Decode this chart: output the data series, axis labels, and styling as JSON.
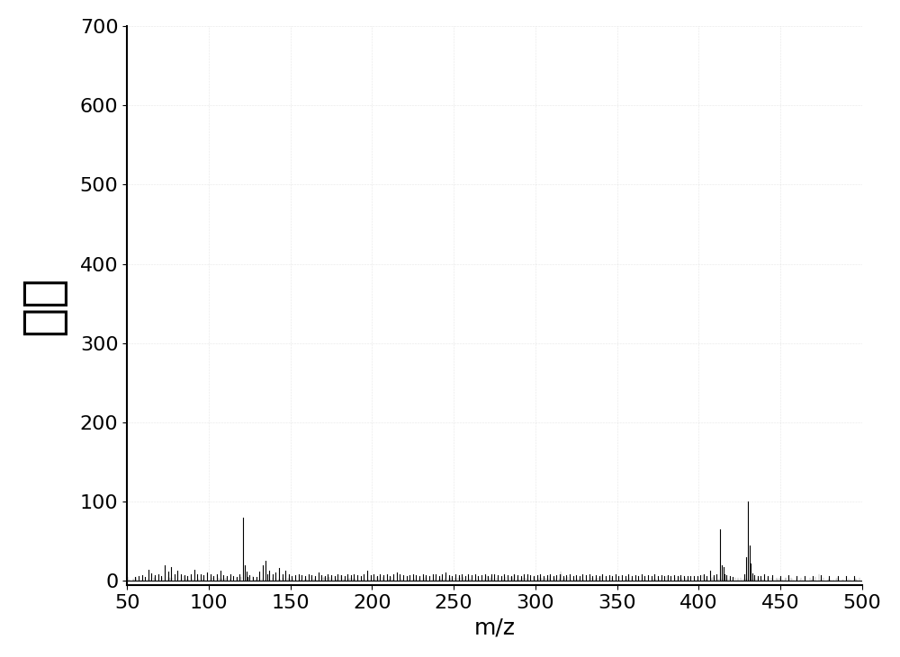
{
  "xlim": [
    50,
    500
  ],
  "ylim": [
    -5,
    700
  ],
  "ylim_display": [
    0,
    700
  ],
  "xticks": [
    50,
    100,
    150,
    200,
    250,
    300,
    350,
    400,
    450,
    500
  ],
  "yticks": [
    0,
    100,
    200,
    300,
    400,
    500,
    600,
    700
  ],
  "xlabel": "m/z",
  "ylabel": "强度",
  "xlabel_fontsize": 18,
  "ylabel_fontsize": 40,
  "tick_fontsize": 16,
  "line_color": "#000000",
  "background_color": "#ffffff",
  "grid_color": "#cccccc",
  "peaks": [
    [
      55,
      5
    ],
    [
      57,
      6
    ],
    [
      59,
      7
    ],
    [
      61,
      5
    ],
    [
      63,
      14
    ],
    [
      65,
      10
    ],
    [
      67,
      7
    ],
    [
      69,
      9
    ],
    [
      71,
      6
    ],
    [
      73,
      20
    ],
    [
      75,
      12
    ],
    [
      77,
      18
    ],
    [
      79,
      9
    ],
    [
      81,
      13
    ],
    [
      83,
      9
    ],
    [
      85,
      7
    ],
    [
      87,
      6
    ],
    [
      89,
      8
    ],
    [
      91,
      14
    ],
    [
      93,
      8
    ],
    [
      95,
      9
    ],
    [
      97,
      7
    ],
    [
      99,
      11
    ],
    [
      101,
      9
    ],
    [
      103,
      6
    ],
    [
      105,
      8
    ],
    [
      107,
      13
    ],
    [
      109,
      7
    ],
    [
      111,
      6
    ],
    [
      113,
      8
    ],
    [
      115,
      6
    ],
    [
      117,
      5
    ],
    [
      119,
      9
    ],
    [
      121,
      80
    ],
    [
      122,
      20
    ],
    [
      123,
      12
    ],
    [
      124,
      5
    ],
    [
      125,
      7
    ],
    [
      127,
      5
    ],
    [
      129,
      5
    ],
    [
      131,
      12
    ],
    [
      133,
      20
    ],
    [
      135,
      25
    ],
    [
      136,
      8
    ],
    [
      137,
      13
    ],
    [
      139,
      9
    ],
    [
      141,
      11
    ],
    [
      143,
      16
    ],
    [
      145,
      9
    ],
    [
      147,
      13
    ],
    [
      149,
      8
    ],
    [
      151,
      6
    ],
    [
      153,
      7
    ],
    [
      155,
      9
    ],
    [
      157,
      7
    ],
    [
      159,
      6
    ],
    [
      161,
      9
    ],
    [
      163,
      7
    ],
    [
      165,
      6
    ],
    [
      167,
      11
    ],
    [
      169,
      7
    ],
    [
      171,
      6
    ],
    [
      173,
      8
    ],
    [
      175,
      7
    ],
    [
      177,
      6
    ],
    [
      179,
      9
    ],
    [
      181,
      7
    ],
    [
      183,
      6
    ],
    [
      185,
      8
    ],
    [
      187,
      7
    ],
    [
      189,
      9
    ],
    [
      191,
      7
    ],
    [
      193,
      6
    ],
    [
      195,
      9
    ],
    [
      197,
      13
    ],
    [
      199,
      7
    ],
    [
      201,
      9
    ],
    [
      203,
      6
    ],
    [
      205,
      8
    ],
    [
      207,
      7
    ],
    [
      209,
      9
    ],
    [
      211,
      6
    ],
    [
      213,
      8
    ],
    [
      215,
      11
    ],
    [
      217,
      9
    ],
    [
      219,
      7
    ],
    [
      221,
      6
    ],
    [
      223,
      7
    ],
    [
      225,
      9
    ],
    [
      227,
      7
    ],
    [
      229,
      6
    ],
    [
      231,
      8
    ],
    [
      233,
      7
    ],
    [
      235,
      6
    ],
    [
      237,
      8
    ],
    [
      239,
      9
    ],
    [
      241,
      6
    ],
    [
      243,
      8
    ],
    [
      245,
      11
    ],
    [
      247,
      7
    ],
    [
      249,
      6
    ],
    [
      251,
      8
    ],
    [
      253,
      7
    ],
    [
      255,
      9
    ],
    [
      257,
      6
    ],
    [
      259,
      8
    ],
    [
      261,
      7
    ],
    [
      263,
      9
    ],
    [
      265,
      6
    ],
    [
      267,
      7
    ],
    [
      269,
      8
    ],
    [
      271,
      6
    ],
    [
      273,
      8
    ],
    [
      275,
      9
    ],
    [
      277,
      7
    ],
    [
      279,
      6
    ],
    [
      281,
      8
    ],
    [
      283,
      7
    ],
    [
      285,
      6
    ],
    [
      287,
      9
    ],
    [
      289,
      7
    ],
    [
      291,
      6
    ],
    [
      293,
      8
    ],
    [
      295,
      9
    ],
    [
      297,
      7
    ],
    [
      299,
      6
    ],
    [
      301,
      7
    ],
    [
      303,
      8
    ],
    [
      305,
      6
    ],
    [
      307,
      7
    ],
    [
      309,
      9
    ],
    [
      311,
      6
    ],
    [
      313,
      7
    ],
    [
      315,
      8
    ],
    [
      317,
      6
    ],
    [
      319,
      7
    ],
    [
      321,
      8
    ],
    [
      323,
      6
    ],
    [
      325,
      7
    ],
    [
      327,
      6
    ],
    [
      329,
      8
    ],
    [
      331,
      7
    ],
    [
      333,
      9
    ],
    [
      335,
      6
    ],
    [
      337,
      7
    ],
    [
      339,
      6
    ],
    [
      341,
      8
    ],
    [
      343,
      6
    ],
    [
      345,
      7
    ],
    [
      347,
      6
    ],
    [
      349,
      8
    ],
    [
      351,
      6
    ],
    [
      353,
      7
    ],
    [
      355,
      6
    ],
    [
      357,
      8
    ],
    [
      359,
      6
    ],
    [
      361,
      7
    ],
    [
      363,
      6
    ],
    [
      365,
      8
    ],
    [
      367,
      6
    ],
    [
      369,
      7
    ],
    [
      371,
      6
    ],
    [
      373,
      8
    ],
    [
      375,
      6
    ],
    [
      377,
      7
    ],
    [
      379,
      6
    ],
    [
      381,
      7
    ],
    [
      383,
      6
    ],
    [
      385,
      7
    ],
    [
      387,
      6
    ],
    [
      389,
      7
    ],
    [
      391,
      6
    ],
    [
      393,
      6
    ],
    [
      395,
      6
    ],
    [
      397,
      6
    ],
    [
      399,
      6
    ],
    [
      401,
      7
    ],
    [
      403,
      9
    ],
    [
      405,
      6
    ],
    [
      407,
      13
    ],
    [
      409,
      7
    ],
    [
      411,
      8
    ],
    [
      413,
      65
    ],
    [
      414,
      20
    ],
    [
      415,
      18
    ],
    [
      416,
      8
    ],
    [
      417,
      7
    ],
    [
      419,
      6
    ],
    [
      421,
      5
    ],
    [
      428,
      8
    ],
    [
      429,
      30
    ],
    [
      430,
      100
    ],
    [
      431,
      45
    ],
    [
      432,
      22
    ],
    [
      433,
      10
    ],
    [
      434,
      7
    ],
    [
      436,
      6
    ],
    [
      438,
      6
    ],
    [
      440,
      8
    ],
    [
      442,
      6
    ],
    [
      445,
      7
    ],
    [
      450,
      6
    ],
    [
      455,
      7
    ],
    [
      460,
      6
    ],
    [
      465,
      6
    ],
    [
      470,
      6
    ],
    [
      475,
      7
    ],
    [
      480,
      6
    ],
    [
      485,
      6
    ],
    [
      490,
      6
    ],
    [
      495,
      6
    ]
  ]
}
